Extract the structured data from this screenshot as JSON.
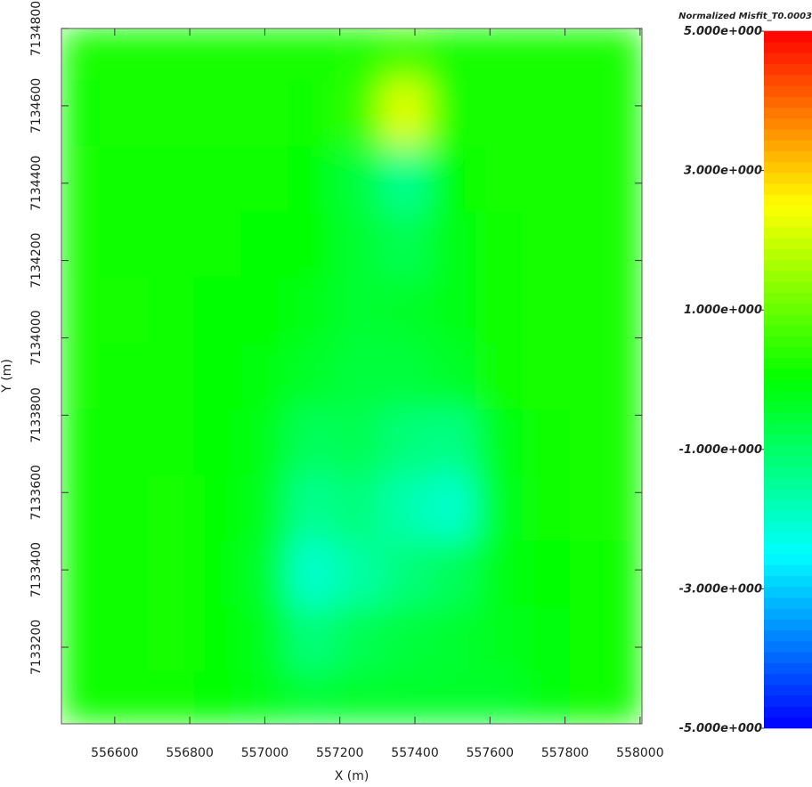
{
  "chart_data": {
    "type": "heatmap",
    "x_label": "X (m)",
    "y_label": "Y (m)",
    "xlim": [
      556458,
      558005
    ],
    "ylim": [
      7133002,
      7134800
    ],
    "xticks": [
      556600,
      556800,
      557000,
      557200,
      557400,
      557600,
      557800,
      558000
    ],
    "yticks": [
      7133200,
      7133400,
      7133600,
      7133800,
      7134000,
      7134200,
      7134400,
      7134600,
      7134800
    ],
    "x": [
      556500,
      556625,
      556750,
      556875,
      557000,
      557125,
      557250,
      557375,
      557500,
      557625,
      557750,
      557875,
      558000
    ],
    "y": [
      7134750,
      7134580,
      7134410,
      7134240,
      7134070,
      7133900,
      7133730,
      7133560,
      7133390,
      7133220,
      7133050
    ],
    "z": [
      [
        0.2,
        0.2,
        0.2,
        0.2,
        0.2,
        0.2,
        0.3,
        0.6,
        0.2,
        0.2,
        0.2,
        0.2,
        0.2
      ],
      [
        0.1,
        0.2,
        0.2,
        0.2,
        0.2,
        0.1,
        0.5,
        2.2,
        0.2,
        0.2,
        0.2,
        0.2,
        0.2
      ],
      [
        0.2,
        0.1,
        0.1,
        0.1,
        0.1,
        0,
        -0.6,
        -1.4,
        0,
        0.2,
        0.2,
        0.2,
        0.2
      ],
      [
        0.2,
        0.1,
        0.1,
        0.1,
        0,
        0,
        -0.5,
        -0.8,
        -0.2,
        0.1,
        0.2,
        0.2,
        0.2
      ],
      [
        0.2,
        0.2,
        0.1,
        0,
        0,
        -0.2,
        -0.5,
        -0.4,
        -0.2,
        0.1,
        0.2,
        0.2,
        0.2
      ],
      [
        0.2,
        0.1,
        0.1,
        0,
        -0.1,
        -0.4,
        -0.6,
        -0.6,
        -0.4,
        0.1,
        0.2,
        0.2,
        0.2
      ],
      [
        0.1,
        0.1,
        0.1,
        0,
        -0.2,
        -0.9,
        -0.8,
        -1.2,
        -1.3,
        -0.2,
        0.1,
        0.2,
        0.2
      ],
      [
        0.1,
        0.1,
        0.2,
        0,
        -0.3,
        -1.4,
        -1.2,
        -1.7,
        -2,
        -0.3,
        0.1,
        0.2,
        0.2
      ],
      [
        0.1,
        0.1,
        0.2,
        0,
        -0.4,
        -2,
        -1.6,
        -1.2,
        -0.9,
        -0.2,
        0,
        0.1,
        0.2
      ],
      [
        0.1,
        0.1,
        0.2,
        0,
        -0.3,
        -1.2,
        -0.8,
        -0.6,
        -0.5,
        -0.3,
        -0.1,
        0.1,
        0.2
      ],
      [
        0.1,
        0.1,
        0.1,
        0,
        -0.2,
        -0.5,
        -0.4,
        -0.4,
        -0.4,
        -0.4,
        -0.1,
        0.1,
        0.2
      ]
    ],
    "colorbar": {
      "title": "Normalized Misfit_T0.0003",
      "clim": [
        -5,
        5
      ],
      "ticks": [
        {
          "value": 5,
          "label": "5.000e+000"
        },
        {
          "value": 3,
          "label": "3.000e+000"
        },
        {
          "value": 1,
          "label": "1.000e+000"
        },
        {
          "value": -1,
          "label": "-1.000e+000"
        },
        {
          "value": -3,
          "label": "-3.000e+000"
        },
        {
          "value": -5,
          "label": "-5.000e+000"
        }
      ]
    }
  }
}
